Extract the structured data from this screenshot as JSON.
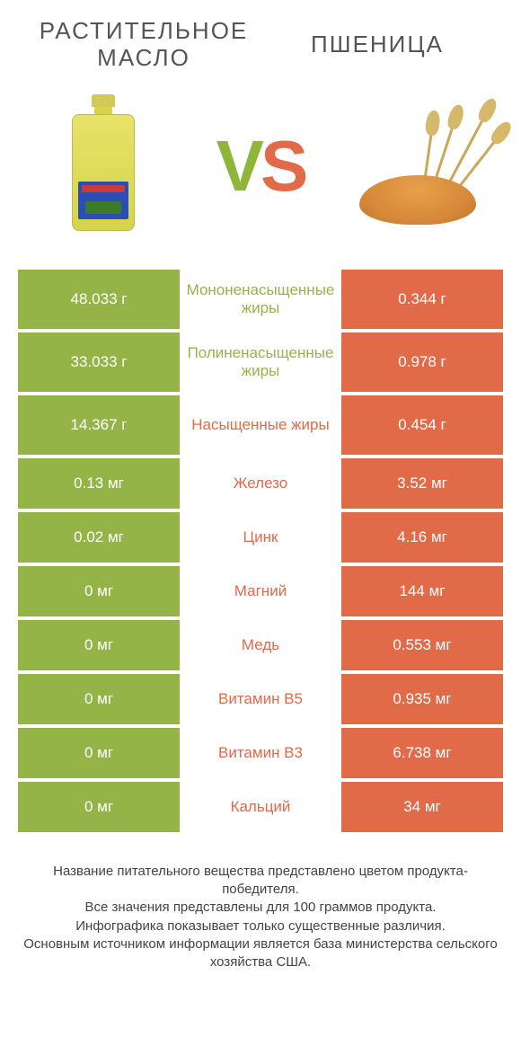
{
  "header": {
    "left_title": "РАСТИТЕЛЬНОЕ МАСЛО",
    "right_title": "ПШЕНИЦА",
    "vs_v": "V",
    "vs_s": "S"
  },
  "colors": {
    "green": "#94b447",
    "orange": "#e16a49",
    "white": "#ffffff",
    "text_gray": "#555555"
  },
  "table": {
    "rows": [
      {
        "left": "48.033 г",
        "mid": "Мононенасыщенные жиры",
        "right": "0.344 г",
        "winner": "left",
        "tall": true
      },
      {
        "left": "33.033 г",
        "mid": "Полиненасыщенные жиры",
        "right": "0.978 г",
        "winner": "left",
        "tall": true
      },
      {
        "left": "14.367 г",
        "mid": "Насыщенные жиры",
        "right": "0.454 г",
        "winner": "right",
        "tall": true
      },
      {
        "left": "0.13 мг",
        "mid": "Железо",
        "right": "3.52 мг",
        "winner": "right",
        "tall": false
      },
      {
        "left": "0.02 мг",
        "mid": "Цинк",
        "right": "4.16 мг",
        "winner": "right",
        "tall": false
      },
      {
        "left": "0 мг",
        "mid": "Магний",
        "right": "144 мг",
        "winner": "right",
        "tall": false
      },
      {
        "left": "0 мг",
        "mid": "Медь",
        "right": "0.553 мг",
        "winner": "right",
        "tall": false
      },
      {
        "left": "0 мг",
        "mid": "Витамин B5",
        "right": "0.935 мг",
        "winner": "right",
        "tall": false
      },
      {
        "left": "0 мг",
        "mid": "Витамин B3",
        "right": "6.738 мг",
        "winner": "right",
        "tall": false
      },
      {
        "left": "0 мг",
        "mid": "Кальций",
        "right": "34 мг",
        "winner": "right",
        "tall": false
      }
    ]
  },
  "footer": {
    "line1": "Название питательного вещества представлено цветом продукта-победителя.",
    "line2": "Все значения представлены для 100 граммов продукта.",
    "line3": "Инфографика показывает только существенные различия.",
    "line4": "Основным источником информации является база министерства сельского хозяйства США."
  }
}
